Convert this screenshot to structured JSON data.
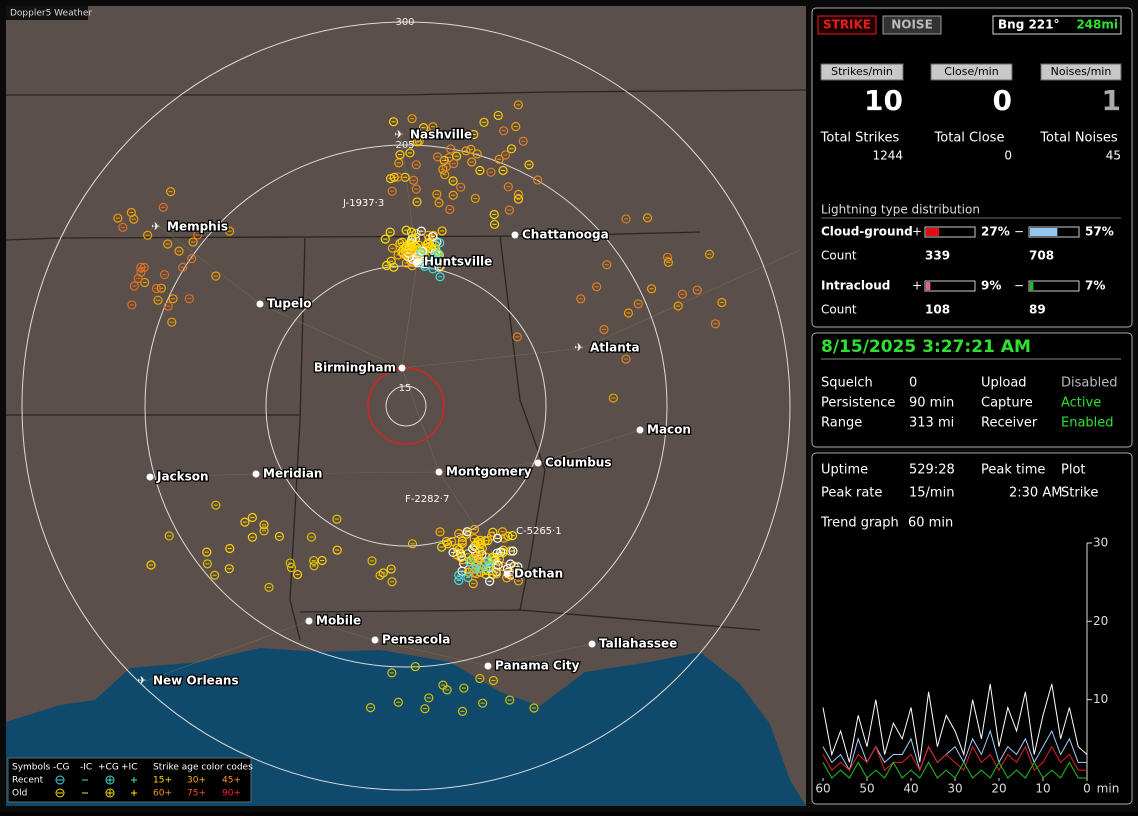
{
  "map": {
    "title": "Doppler5 Weather",
    "range_rings": [
      "300",
      "205",
      "15"
    ],
    "cities": [
      "Nashville",
      "Memphis",
      "Chattanooga",
      "Huntsville",
      "Tupelo",
      "Atlanta",
      "Birmingham",
      "Macon",
      "Jackson",
      "Meridian",
      "Montgomery",
      "Columbus",
      "Dothan",
      "Mobile",
      "Pensacola",
      "Tallahassee",
      "Panama City",
      "New Orleans"
    ],
    "storms": [
      "J-1937·3",
      "F-2282·7",
      "C-5265·1"
    ],
    "legend": {
      "headers": [
        "Symbols",
        "-CG",
        "-IC",
        "+CG",
        "+IC",
        "Strike age color codes"
      ],
      "rows": [
        {
          "label": "Recent",
          "ages": [
            "15+",
            "30+",
            "45+"
          ]
        },
        {
          "label": "Old",
          "ages": [
            "60+",
            "75+",
            "90+"
          ]
        }
      ]
    }
  },
  "status": {
    "strike": "STRIKE",
    "noise": "NOISE",
    "bearing": "Bng 221°",
    "distance": "248mi"
  },
  "rates": {
    "headers": [
      "Strikes/min",
      "Close/min",
      "Noises/min"
    ],
    "values": [
      10,
      0,
      1
    ],
    "total_labels": [
      "Total Strikes",
      "Total Close",
      "Total Noises"
    ],
    "totals": [
      1244,
      0,
      45
    ]
  },
  "distribution": {
    "title": "Lightning type distribution",
    "count_label": "Count",
    "rows": [
      {
        "label": "Cloud-ground",
        "plus_sign": "+",
        "minus_sign": "−",
        "plus": {
          "value": 27,
          "label": "27%"
        },
        "minus": {
          "value": 57,
          "label": "57%"
        },
        "plus_count": 339,
        "minus_count": 708
      },
      {
        "label": "Intracloud",
        "plus_sign": "+",
        "minus_sign": "−",
        "plus": {
          "value": 9,
          "label": "9%"
        },
        "minus": {
          "value": 7,
          "label": "7%"
        },
        "plus_count": 108,
        "minus_count": 89
      }
    ]
  },
  "clock": "8/15/2025 3:27:21 AM",
  "settings": [
    [
      "Squelch",
      "0",
      "Upload",
      "Disabled"
    ],
    [
      "Persistence",
      "90 min",
      "Capture",
      "Active"
    ],
    [
      "Range",
      "313 mi",
      "Receiver",
      "Enabled"
    ]
  ],
  "stats": [
    [
      "Uptime",
      "529:28",
      "Peak time",
      "2:30 AM",
      "Plot"
    ],
    [
      "Peak rate",
      "15/min",
      "2:30 AM",
      "Strike"
    ],
    [
      "Trend graph",
      "60 min"
    ]
  ],
  "chart_data": {
    "type": "line",
    "x_label": "min",
    "x": [
      60,
      58,
      56,
      54,
      52,
      50,
      48,
      46,
      44,
      42,
      40,
      38,
      36,
      34,
      32,
      30,
      28,
      26,
      24,
      22,
      20,
      18,
      16,
      14,
      12,
      10,
      8,
      6,
      4,
      2,
      0
    ],
    "xlim": [
      60,
      0
    ],
    "xticks": [
      60,
      50,
      40,
      30,
      20,
      10,
      0
    ],
    "ylim": [
      0,
      30
    ],
    "yticks": [
      10,
      20,
      30
    ],
    "series": [
      {
        "color": "#ffffff",
        "values": [
          9,
          3,
          6,
          2,
          8,
          4,
          10,
          3,
          7,
          5,
          9,
          2,
          11,
          4,
          8,
          6,
          3,
          10,
          5,
          12,
          4,
          9,
          6,
          11,
          3,
          8,
          12,
          5,
          9,
          4,
          3
        ]
      },
      {
        "color": "#9fd0ff",
        "values": [
          4,
          2,
          3,
          1,
          5,
          2,
          4,
          2,
          3,
          3,
          5,
          1,
          4,
          2,
          3,
          4,
          2,
          5,
          3,
          6,
          2,
          4,
          3,
          5,
          2,
          4,
          6,
          3,
          5,
          2,
          2
        ]
      },
      {
        "color": "#e02020",
        "values": [
          3,
          1,
          2,
          1,
          3,
          2,
          4,
          1,
          2,
          2,
          3,
          1,
          4,
          2,
          3,
          2,
          1,
          4,
          2,
          3,
          1,
          3,
          2,
          4,
          1,
          2,
          4,
          2,
          3,
          1,
          1
        ]
      },
      {
        "color": "#20c020",
        "values": [
          2,
          0,
          1,
          0,
          2,
          0,
          1,
          0,
          2,
          0,
          1,
          0,
          2,
          0,
          1,
          0,
          2,
          0,
          1,
          0,
          2,
          0,
          1,
          0,
          2,
          0,
          1,
          0,
          2,
          0,
          0
        ]
      }
    ]
  }
}
